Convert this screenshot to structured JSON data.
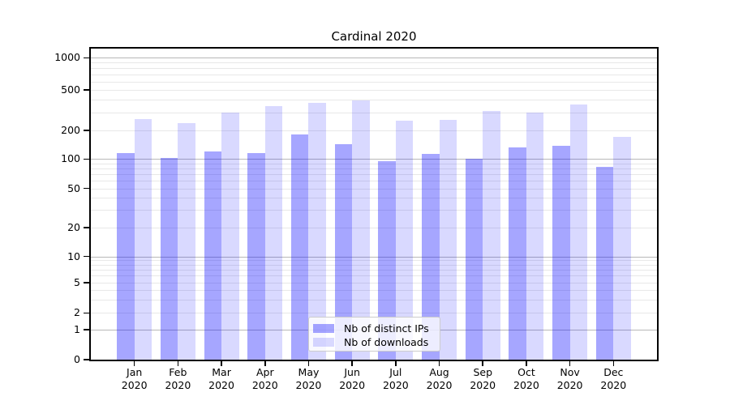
{
  "title": "Cardinal 2020",
  "chart_data": {
    "type": "bar",
    "title": "Cardinal 2020",
    "scale": "symlog",
    "grid": true,
    "legend_position": "lower center",
    "categories": [
      "Jan",
      "Feb",
      "Mar",
      "Apr",
      "May",
      "Jun",
      "Jul",
      "Aug",
      "Sep",
      "Oct",
      "Nov",
      "Dec"
    ],
    "year": "2020",
    "series": [
      {
        "name": "Nb of distinct IPs",
        "color": "rgba(0,0,255,0.35)",
        "values": [
          115,
          103,
          119,
          116,
          180,
          143,
          95,
          113,
          101,
          133,
          138,
          83
        ]
      },
      {
        "name": "Nb of downloads",
        "color": "rgba(0,0,255,0.15)",
        "values": [
          260,
          235,
          298,
          345,
          375,
          395,
          250,
          252,
          308,
          300,
          358,
          170
        ]
      }
    ],
    "yticks": [
      1000,
      500,
      200,
      100,
      50,
      20,
      10,
      5,
      2,
      1,
      0
    ],
    "ytick_labels": [
      "1000",
      "500",
      "200",
      "100",
      "50",
      "20",
      "10",
      "5",
      "2",
      "1",
      "0"
    ],
    "major_gridlines": [
      1000,
      100,
      10,
      1
    ],
    "minor_gridlines": [
      900,
      800,
      700,
      600,
      500,
      400,
      300,
      200,
      90,
      80,
      70,
      60,
      50,
      40,
      30,
      20,
      9,
      8,
      7,
      6,
      5,
      4,
      3,
      2
    ],
    "colors": {
      "bar_distinct_ips": "rgba(0,0,255,0.35)",
      "bar_downloads": "rgba(0,0,255,0.15)",
      "major_grid": "#b8b8b8",
      "minor_grid": "#e8e8e8",
      "spine": "#000000",
      "background": "#ffffff"
    }
  },
  "legend": {
    "items": [
      {
        "label": "Nb of distinct IPs",
        "color": "rgba(0,0,255,0.35)"
      },
      {
        "label": "Nb of downloads",
        "color": "rgba(0,0,255,0.15)"
      }
    ]
  }
}
